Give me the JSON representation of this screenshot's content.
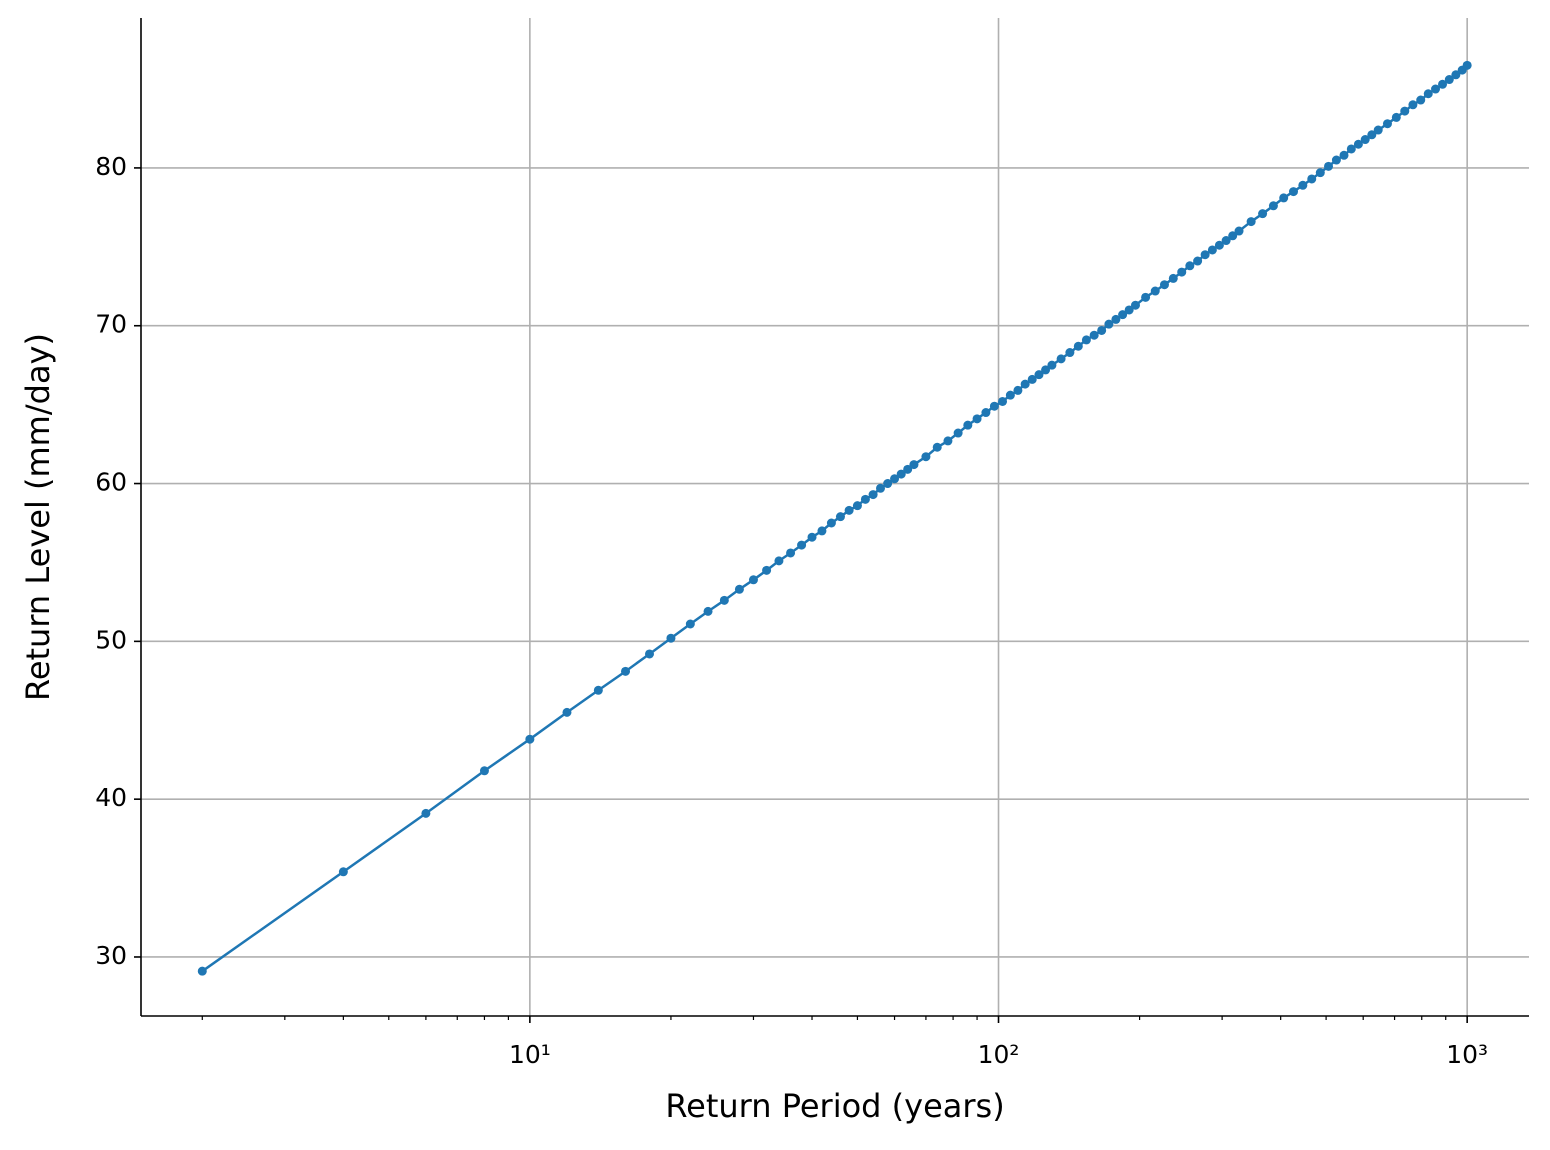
{
  "chart_data": {
    "type": "line",
    "xscale": "log",
    "grid": true,
    "markers": true,
    "color": "#1f77b4",
    "xlabel": "Return Period (years)",
    "ylabel": "Return Level (mm/day)",
    "xlim": [
      1.48,
      1355
    ],
    "ylim": [
      26.26,
      89.5
    ],
    "xticks": [
      {
        "value": 10,
        "label": "10¹"
      },
      {
        "value": 100,
        "label": "10²"
      },
      {
        "value": 1000,
        "label": "10³"
      }
    ],
    "xminorticks": [
      2,
      3,
      4,
      5,
      6,
      7,
      8,
      9,
      20,
      30,
      40,
      50,
      60,
      70,
      80,
      90,
      200,
      300,
      400,
      500,
      600,
      700,
      800,
      900
    ],
    "yticks": [
      30,
      40,
      50,
      60,
      70,
      80
    ],
    "x": [
      2,
      4,
      6,
      8,
      10,
      12,
      14,
      16,
      18,
      20,
      22,
      24,
      26,
      28,
      30,
      32,
      34,
      36,
      38,
      40,
      42,
      44,
      46,
      48,
      50,
      52,
      54,
      56,
      58,
      60,
      62,
      64,
      66,
      70,
      74,
      78,
      82,
      86,
      90,
      94,
      98,
      102,
      106,
      110,
      114,
      118,
      122,
      126,
      130,
      136,
      142,
      148,
      154,
      160,
      166,
      172,
      178,
      184,
      190,
      196,
      206,
      216,
      226,
      236,
      246,
      256,
      266,
      276,
      286,
      296,
      306,
      316,
      326,
      346,
      366,
      386,
      406,
      426,
      446,
      466,
      486,
      506,
      526,
      546,
      566,
      586,
      606,
      626,
      646,
      676,
      706,
      736,
      766,
      796,
      826,
      856,
      886,
      916,
      946,
      976,
      1000
    ],
    "values": [
      29.1,
      35.4,
      39.1,
      41.8,
      43.8,
      45.5,
      46.9,
      48.1,
      49.2,
      50.2,
      51.1,
      51.9,
      52.6,
      53.3,
      53.9,
      54.5,
      55.1,
      55.6,
      56.1,
      56.6,
      57.0,
      57.5,
      57.9,
      58.3,
      58.6,
      59.0,
      59.3,
      59.7,
      60.0,
      60.3,
      60.6,
      60.9,
      61.2,
      61.7,
      62.3,
      62.7,
      63.2,
      63.7,
      64.1,
      64.5,
      64.9,
      65.2,
      65.6,
      65.9,
      66.3,
      66.6,
      66.9,
      67.2,
      67.5,
      67.9,
      68.3,
      68.7,
      69.1,
      69.4,
      69.7,
      70.1,
      70.4,
      70.7,
      71.0,
      71.3,
      71.8,
      72.2,
      72.6,
      73.0,
      73.4,
      73.8,
      74.1,
      74.5,
      74.8,
      75.1,
      75.4,
      75.7,
      76.0,
      76.6,
      77.1,
      77.6,
      78.1,
      78.5,
      78.9,
      79.3,
      79.7,
      80.1,
      80.5,
      80.8,
      81.2,
      81.5,
      81.8,
      82.1,
      82.4,
      82.8,
      83.2,
      83.6,
      84.0,
      84.3,
      84.7,
      85.0,
      85.3,
      85.6,
      85.9,
      86.2,
      86.5
    ]
  }
}
